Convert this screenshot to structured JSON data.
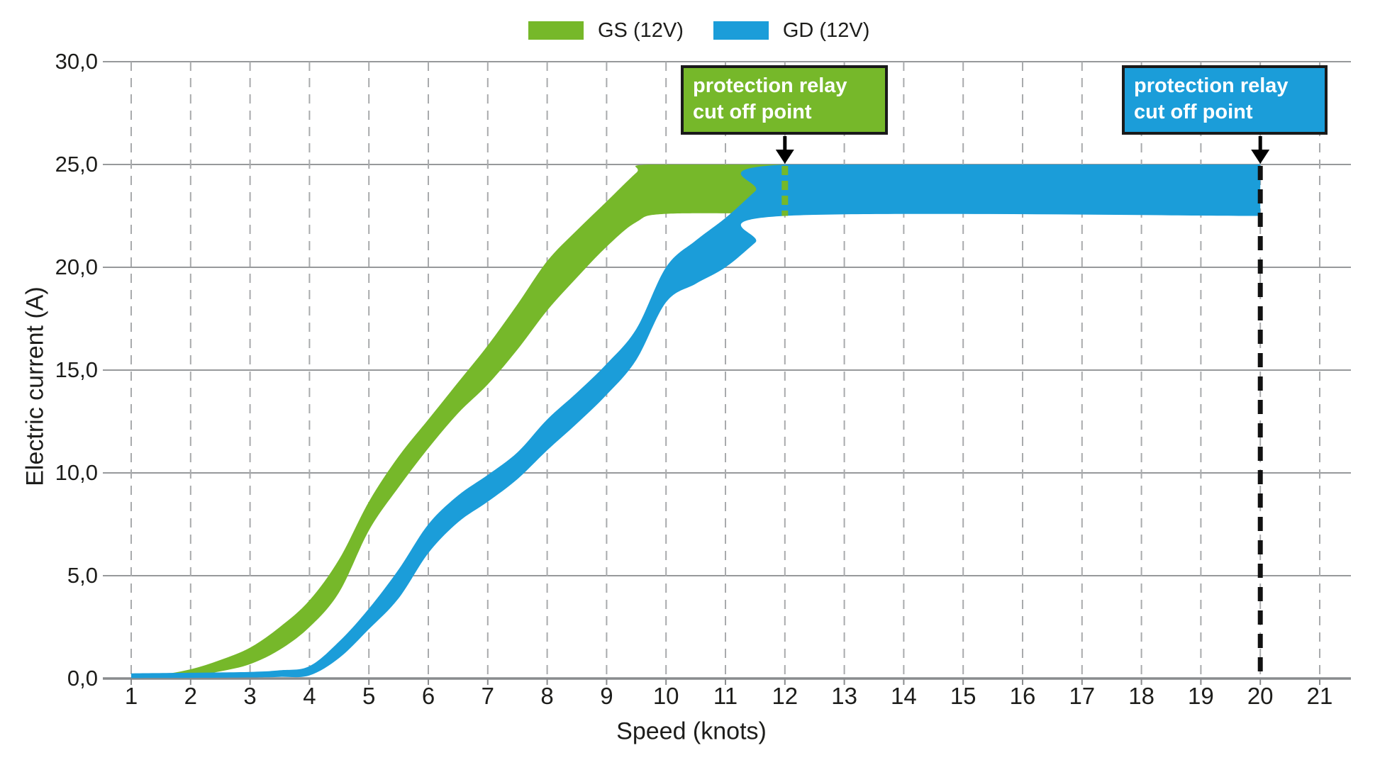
{
  "colors": {
    "gs_green": "#76b82a",
    "gd_blue": "#1b9dd9",
    "gridline": "#97999b",
    "gridline_dashed": "#a8aaac",
    "axis_line": "#898b8d",
    "text": "#1d1d1b",
    "callout_border": "#1a1a1a",
    "callout_text": "#ffffff",
    "cutoff_dash_black": "#111111"
  },
  "legend": [
    {
      "label": "GS (12V)",
      "color": "#76b82a"
    },
    {
      "label": "GD (12V)",
      "color": "#1b9dd9"
    }
  ],
  "annotations": {
    "gs_cutoff": {
      "line1": "protection relay",
      "line2": "cut off point",
      "speed": 12,
      "amps": 25.0,
      "color": "#76b82a"
    },
    "gd_cutoff": {
      "line1": "protection relay",
      "line2": "cut off point",
      "speed": 20,
      "amps": 25.0,
      "color": "#1b9dd9"
    }
  },
  "chart_data": {
    "type": "area",
    "title": "",
    "xlabel": "Speed (knots)",
    "ylabel": "Electric current (A)",
    "x_ticks": [
      "1",
      "2",
      "3",
      "4",
      "5",
      "6",
      "7",
      "8",
      "9",
      "10",
      "11",
      "12",
      "13",
      "14",
      "15",
      "16",
      "17",
      "18",
      "19",
      "20",
      "21"
    ],
    "x_tick_values": [
      1,
      2,
      3,
      4,
      5,
      6,
      7,
      8,
      9,
      10,
      11,
      12,
      13,
      14,
      15,
      16,
      17,
      18,
      19,
      20,
      21
    ],
    "y_ticks": [
      {
        "value": 0,
        "label": "0,0"
      },
      {
        "value": 5,
        "label": "5,0"
      },
      {
        "value": 10,
        "label": "10,0"
      },
      {
        "value": 15,
        "label": "15,0"
      },
      {
        "value": 20,
        "label": "20,0"
      },
      {
        "value": 25,
        "label": "25,0"
      },
      {
        "value": 30,
        "label": "30,0"
      }
    ],
    "xlim": [
      1,
      21
    ],
    "ylim": [
      0,
      30
    ],
    "grid": {
      "horizontal": "solid",
      "vertical": "dashed"
    },
    "legend_position": "top-center",
    "decimal_separator": ",",
    "series": [
      {
        "name": "GS (12V)",
        "color": "#76b82a",
        "cutoff_speed": 12,
        "cutoff_amps": 25.0,
        "speeds": [
          1,
          2,
          3,
          4,
          5,
          6,
          7,
          8,
          9,
          10,
          11,
          12
        ],
        "center_values": [
          0.1,
          0.3,
          1.1,
          3.1,
          7.9,
          11.9,
          15.2,
          19.1,
          22.1,
          23.8,
          23.8,
          23.8
        ],
        "band_upper": [
          [
            1,
            0.2
          ],
          [
            1.5,
            0.2
          ],
          [
            2,
            0.45
          ],
          [
            2.5,
            0.9
          ],
          [
            3,
            1.5
          ],
          [
            3.5,
            2.5
          ],
          [
            4,
            3.8
          ],
          [
            4.5,
            5.8
          ],
          [
            5,
            8.6
          ],
          [
            5.5,
            10.8
          ],
          [
            6,
            12.6
          ],
          [
            6.5,
            14.4
          ],
          [
            7,
            16.2
          ],
          [
            7.5,
            18.2
          ],
          [
            8,
            20.3
          ],
          [
            8.5,
            21.8
          ],
          [
            9,
            23.2
          ],
          [
            9.5,
            24.6
          ],
          [
            9.7,
            25
          ],
          [
            12,
            25
          ]
        ],
        "band_lower": [
          [
            1,
            0.05
          ],
          [
            1.5,
            0.05
          ],
          [
            2,
            0.12
          ],
          [
            2.5,
            0.35
          ],
          [
            3,
            0.7
          ],
          [
            3.5,
            1.4
          ],
          [
            4,
            2.5
          ],
          [
            4.5,
            4.2
          ],
          [
            5,
            7.2
          ],
          [
            5.5,
            9.3
          ],
          [
            6,
            11.2
          ],
          [
            6.5,
            12.9
          ],
          [
            7,
            14.3
          ],
          [
            7.5,
            16.0
          ],
          [
            8,
            17.9
          ],
          [
            8.5,
            19.5
          ],
          [
            9,
            21.0
          ],
          [
            9.5,
            22.2
          ],
          [
            10,
            22.6
          ],
          [
            12,
            22.6
          ]
        ]
      },
      {
        "name": "GD (12V)",
        "color": "#1b9dd9",
        "cutoff_speed": 20,
        "cutoff_amps": 25.0,
        "speeds": [
          1,
          2,
          3,
          4,
          5,
          6,
          7,
          8,
          9,
          10,
          11,
          12,
          13,
          14,
          15,
          16,
          17,
          18,
          19,
          20
        ],
        "center_values": [
          0.1,
          0.15,
          0.2,
          0.4,
          2.9,
          6.8,
          9.2,
          11.8,
          14.5,
          19.1,
          21.2,
          23.75,
          23.75,
          23.75,
          23.75,
          23.75,
          23.75,
          23.75,
          23.75,
          23.75
        ],
        "band_upper": [
          [
            1,
            0.25
          ],
          [
            2,
            0.28
          ],
          [
            3,
            0.32
          ],
          [
            3.5,
            0.4
          ],
          [
            4,
            0.6
          ],
          [
            4.5,
            1.8
          ],
          [
            5,
            3.4
          ],
          [
            5.5,
            5.3
          ],
          [
            6,
            7.5
          ],
          [
            6.5,
            8.9
          ],
          [
            7,
            9.9
          ],
          [
            7.5,
            11.0
          ],
          [
            8,
            12.6
          ],
          [
            8.5,
            13.9
          ],
          [
            9,
            15.3
          ],
          [
            9.5,
            17.0
          ],
          [
            10,
            20.0
          ],
          [
            10.5,
            21.3
          ],
          [
            11,
            22.4
          ],
          [
            11.5,
            23.7
          ],
          [
            12,
            25
          ],
          [
            20,
            25
          ]
        ],
        "band_lower": [
          [
            1,
            0.02
          ],
          [
            2,
            0.03
          ],
          [
            3,
            0.05
          ],
          [
            3.5,
            0.08
          ],
          [
            4,
            0.15
          ],
          [
            4.5,
            1.0
          ],
          [
            5,
            2.4
          ],
          [
            5.5,
            3.9
          ],
          [
            6,
            6.1
          ],
          [
            6.5,
            7.6
          ],
          [
            7,
            8.6
          ],
          [
            7.5,
            9.7
          ],
          [
            8,
            11.1
          ],
          [
            8.5,
            12.4
          ],
          [
            9,
            13.8
          ],
          [
            9.5,
            15.5
          ],
          [
            10,
            18.3
          ],
          [
            10.5,
            19.2
          ],
          [
            11,
            20.0
          ],
          [
            11.5,
            21.2
          ],
          [
            12,
            22.5
          ],
          [
            20,
            22.5
          ]
        ]
      }
    ]
  }
}
